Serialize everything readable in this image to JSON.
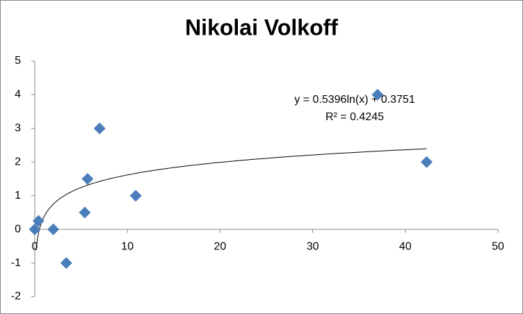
{
  "chart_data": {
    "type": "scatter",
    "title": "Nikolai Volkoff",
    "x": [
      0,
      0.4,
      2,
      3.4,
      5.4,
      5.7,
      7,
      10.9,
      37,
      42.3
    ],
    "values": [
      0,
      0.25,
      0,
      -1,
      0.5,
      1.5,
      3,
      1,
      4,
      2
    ],
    "color": "#4a7ebb",
    "xlim": [
      0,
      50
    ],
    "xticks": [
      0,
      10,
      20,
      30,
      40,
      50
    ],
    "ylim": [
      -2,
      5
    ],
    "yticks": [
      -2,
      -1,
      0,
      1,
      2,
      3,
      4,
      5
    ],
    "grid": false,
    "trendline": {
      "type": "log",
      "equation": "y = 0.5396ln(x) + 0.3751",
      "r2": "R² = 0.4245"
    }
  }
}
